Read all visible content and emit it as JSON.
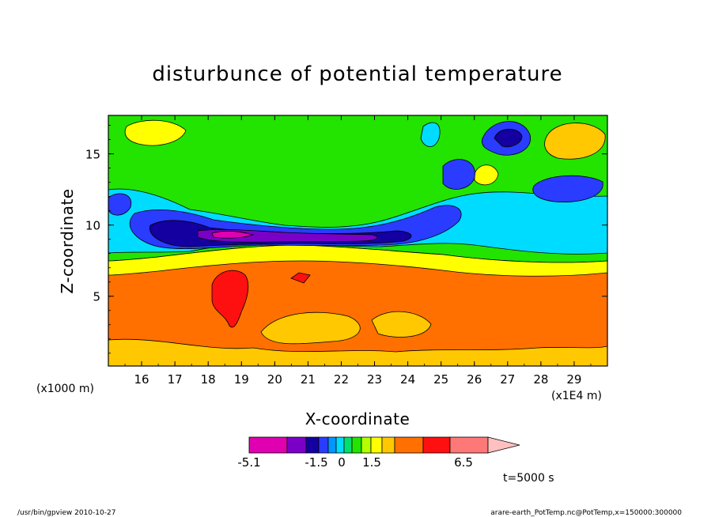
{
  "chart_data": {
    "type": "heatmap",
    "title": "disturbunce of potential temperature",
    "xlabel": "X-coordinate",
    "ylabel": "Z-coordinate",
    "x_unit_left": "(x1000 m)",
    "x_unit_right": "(x1E4 m)",
    "x_ticks": [
      "16",
      "17",
      "18",
      "19",
      "20",
      "21",
      "22",
      "23",
      "24",
      "25",
      "26",
      "27",
      "28",
      "29"
    ],
    "y_ticks": [
      "5",
      "10",
      "15"
    ],
    "xlim": [
      15,
      30
    ],
    "ylim": [
      0.1,
      17.7
    ],
    "colorbar": {
      "labels": [
        "-5.1",
        "-1.5",
        "0",
        "1.5",
        "6.5"
      ],
      "bins": [
        {
          "color": "#e000b0"
        },
        {
          "color": "#7a00c8"
        },
        {
          "color": "#1400a0"
        },
        {
          "color": "#2a3cff"
        },
        {
          "color": "#0096ff"
        },
        {
          "color": "#00dcff"
        },
        {
          "color": "#00e070"
        },
        {
          "color": "#22e400"
        },
        {
          "color": "#b4ff00"
        },
        {
          "color": "#ffff00"
        },
        {
          "color": "#ffc800"
        },
        {
          "color": "#ff7000"
        },
        {
          "color": "#ff1010"
        },
        {
          "color": "#ff7878"
        },
        {
          "color": "#ffc0c0"
        }
      ]
    },
    "time_label": "t=5000 s",
    "footer_left": "/usr/bin/gpview  2010-10-27",
    "footer_right": "arare-earth_PotTemp.nc@PotTemp,x=150000:300000",
    "fields": {
      "background": "#ff7000",
      "layers": [
        {
          "name": "upper-green",
          "color": "#22e400"
        },
        {
          "name": "upper-yellow-band",
          "color": "#ffff00"
        },
        {
          "name": "cyan-band",
          "color": "#00dcff"
        },
        {
          "name": "blue-band",
          "color": "#2a3cff"
        },
        {
          "name": "navy-band",
          "color": "#1400a0"
        },
        {
          "name": "purple-band",
          "color": "#7a00c8"
        },
        {
          "name": "magenta-core",
          "color": "#e000b0"
        },
        {
          "name": "red-blob",
          "color": "#ff1010"
        },
        {
          "name": "low-yellow",
          "color": "#ffc800"
        }
      ]
    }
  }
}
